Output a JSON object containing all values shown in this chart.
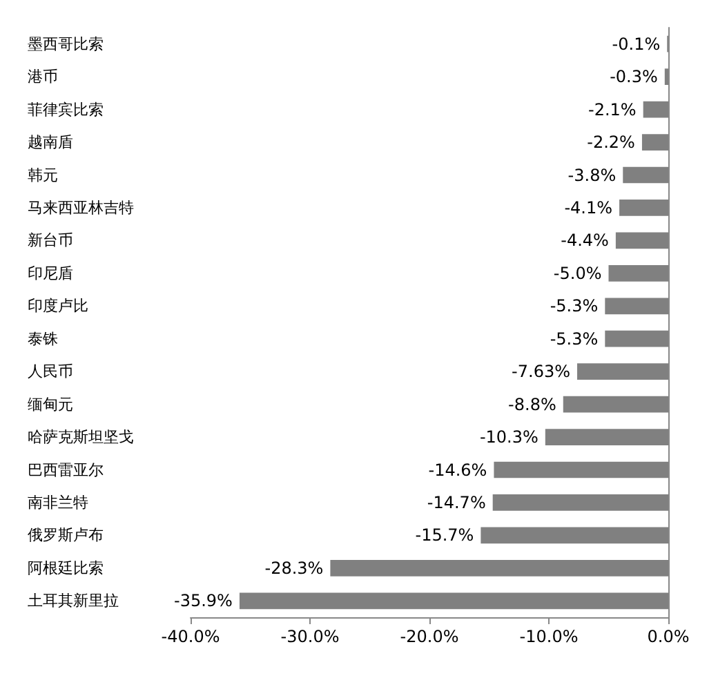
{
  "chart_data": {
    "type": "bar",
    "orientation": "horizontal",
    "categories": [
      "墨西哥比索",
      "港币",
      "菲律宾比索",
      "越南盾",
      "韩元",
      "马来西亚林吉特",
      "新台币",
      "印尼盾",
      "印度卢比",
      "泰铢",
      "人民币",
      "缅甸元",
      "哈萨克斯坦坚戈",
      "巴西雷亚尔",
      "南非兰特",
      "俄罗斯卢布",
      "阿根廷比索",
      "土耳其新里拉"
    ],
    "series": [
      {
        "color": "#808080",
        "values": [
          -0.1,
          -0.3,
          -2.1,
          -2.2,
          -3.8,
          -4.1,
          -4.4,
          -5.0,
          -5.3,
          -5.3,
          -7.63,
          -8.8,
          -10.3,
          -14.6,
          -14.7,
          -15.7,
          -28.3,
          -35.9
        ],
        "value_labels": [
          "-0.1%",
          "-0.3%",
          "-2.1%",
          "-2.2%",
          "-3.8%",
          "-4.1%",
          "-4.4%",
          "-5.0%",
          "-5.3%",
          "-5.3%",
          "-7.63%",
          "-8.8%",
          "-10.3%",
          "-14.6%",
          "-14.7%",
          "-15.7%",
          "-28.3%",
          "-35.9%"
        ]
      }
    ],
    "xlim": [
      -40,
      0
    ],
    "xticks": [
      {
        "value": -40,
        "label": "-40.0%"
      },
      {
        "value": -30,
        "label": "-30.0%"
      },
      {
        "value": -20,
        "label": "-20.0%"
      },
      {
        "value": -10,
        "label": "-10.0%"
      },
      {
        "value": 0,
        "label": "0.0%"
      }
    ]
  }
}
